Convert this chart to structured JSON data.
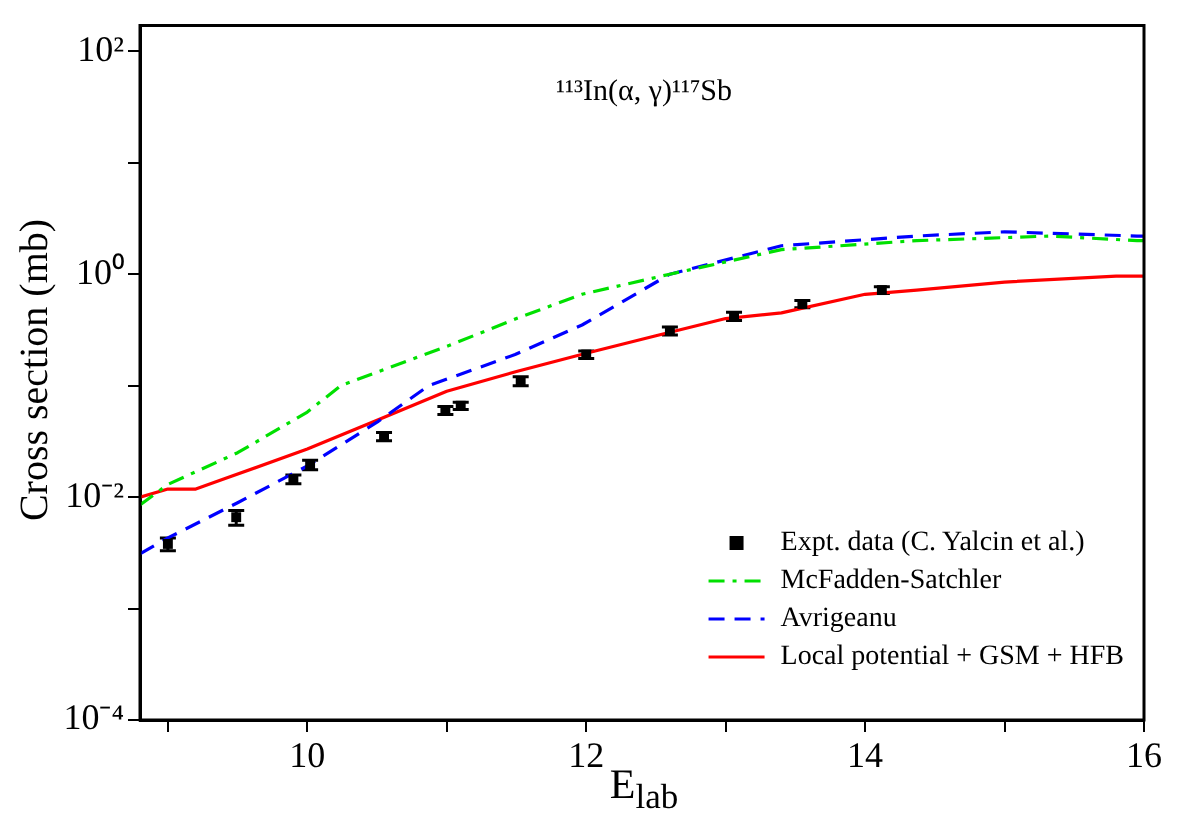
{
  "chart_data": {
    "type": "line",
    "title": "¹¹³In(α, γ)¹¹⁷Sb",
    "xlabel": "E$_{lab}$",
    "ylabel": "Cross section (mb)",
    "xlim": [
      8.8,
      16
    ],
    "xticks": [
      {
        "value": 9,
        "label": null
      },
      10,
      {
        "value": 11,
        "label": null
      },
      12,
      {
        "value": 13,
        "label": null
      },
      14,
      {
        "value": 15,
        "label": null
      },
      16
    ],
    "ylim": [
      0.0001,
      170
    ],
    "yticks": [
      {
        "value": 0.0001,
        "label": "10⁻⁴"
      },
      {
        "value": 0.001,
        "label": null
      },
      {
        "value": 0.01,
        "label": "10⁻²"
      },
      {
        "value": 0.1,
        "label": null
      },
      {
        "value": 1,
        "label": "10⁰"
      },
      {
        "value": 10,
        "label": null
      },
      {
        "value": 100,
        "label": "10²"
      }
    ],
    "log": "y",
    "grid": false,
    "legend": "bottom right",
    "series": [
      {
        "name": "Expt. data (C. Yalcin et al.)",
        "type": "scatter",
        "marker": "square",
        "color": "#000000",
        "x": [
          9.0,
          9.49,
          9.9,
          10.02,
          10.55,
          10.99,
          11.1,
          11.53,
          12.0,
          12.6,
          13.06,
          13.55,
          14.12
        ],
        "values": [
          0.0038,
          0.0066,
          0.0145,
          0.0195,
          0.035,
          0.06,
          0.066,
          0.11,
          0.19,
          0.31,
          0.42,
          0.54,
          0.72
        ],
        "errors": [
          [
            0.0033,
            0.0043
          ],
          [
            0.0056,
            0.0076
          ],
          [
            0.0132,
            0.0158
          ],
          [
            0.0176,
            0.0214
          ],
          [
            0.032,
            0.038
          ],
          [
            0.055,
            0.065
          ],
          [
            0.061,
            0.071
          ],
          [
            0.1,
            0.12
          ],
          [
            0.175,
            0.205
          ],
          [
            0.285,
            0.335
          ],
          [
            0.385,
            0.455
          ],
          [
            0.5,
            0.58
          ],
          [
            0.67,
            0.77
          ]
        ]
      },
      {
        "name": "McFadden-Satchler",
        "line_style": "dashdot",
        "marker": "none",
        "color": "#00e000",
        "x": [
          8.8,
          9.0,
          9.5,
          10.0,
          10.24,
          11.02,
          11.5,
          11.97,
          12.6,
          13.4,
          14.37,
          15.33,
          15.95,
          16.0
        ],
        "values": [
          0.0085,
          0.013,
          0.025,
          0.058,
          0.1,
          0.23,
          0.4,
          0.66,
          1.0,
          1.66,
          2.0,
          2.2,
          2.0,
          2.0
        ]
      },
      {
        "name": "Avrigeanu",
        "line_style": "dashed",
        "marker": "none",
        "color": "#0000ff",
        "x": [
          8.8,
          9.0,
          9.5,
          10.0,
          10.5,
          10.87,
          11.49,
          11.97,
          12.6,
          13.4,
          14.37,
          15.0,
          15.95,
          16.0
        ],
        "values": [
          0.0031,
          0.0043,
          0.0089,
          0.019,
          0.047,
          0.1,
          0.19,
          0.35,
          1.0,
          1.8,
          2.2,
          2.4,
          2.2,
          2.2
        ]
      },
      {
        "name": "Local potential + GSM + HFB",
        "line_style": "solid",
        "marker": "none",
        "color": "#ff0000",
        "x": [
          8.8,
          9.0,
          9.2,
          9.4,
          10.0,
          10.5,
          11.0,
          11.5,
          12.0,
          12.5,
          13.0,
          13.4,
          14.0,
          14.37,
          15.0,
          15.8,
          16.0
        ],
        "values": [
          0.01,
          0.0118,
          0.0118,
          0.0145,
          0.027,
          0.049,
          0.089,
          0.134,
          0.195,
          0.28,
          0.4,
          0.45,
          0.66,
          0.72,
          0.85,
          0.96,
          0.96
        ]
      }
    ]
  }
}
